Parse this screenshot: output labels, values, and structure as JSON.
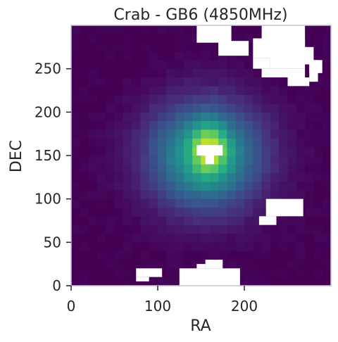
{
  "chart_data": {
    "type": "heatmap",
    "title": "Crab - GB6 (4850MHz)",
    "xlabel": "RA",
    "ylabel": "DEC",
    "xlim": [
      0,
      300
    ],
    "ylim": [
      0,
      300
    ],
    "xticks": [
      0,
      100,
      200
    ],
    "yticks": [
      0,
      50,
      100,
      150,
      200,
      250
    ],
    "grid": false,
    "colormap": "viridis",
    "grid_size": [
      30,
      30
    ],
    "cell_size": 10,
    "source": {
      "center": [
        155,
        150
      ],
      "sigma": [
        45,
        42
      ],
      "peak_center": [
        160,
        158
      ],
      "peak_sigma": [
        14,
        20
      ]
    },
    "masked_regions": [
      [
        210,
        270,
        262,
        285
      ],
      [
        230,
        270,
        250,
        265
      ],
      [
        210,
        230,
        250,
        262
      ],
      [
        145,
        185,
        280,
        300
      ],
      [
        170,
        205,
        265,
        282
      ],
      [
        220,
        270,
        240,
        250
      ],
      [
        250,
        275,
        230,
        240
      ],
      [
        240,
        270,
        270,
        300
      ],
      [
        220,
        250,
        285,
        300
      ],
      [
        230,
        270,
        260,
        275
      ],
      [
        275,
        285,
        235,
        260
      ],
      [
        265,
        280,
        255,
        275
      ],
      [
        275,
        290,
        245,
        260
      ],
      [
        145,
        175,
        150,
        162
      ],
      [
        155,
        165,
        140,
        150
      ],
      [
        225,
        268,
        80,
        100
      ],
      [
        217,
        237,
        70,
        80
      ],
      [
        75,
        105,
        10,
        20
      ],
      [
        75,
        90,
        5,
        10
      ],
      [
        125,
        195,
        0,
        20
      ],
      [
        155,
        175,
        20,
        30
      ],
      [
        145,
        155,
        20,
        25
      ]
    ],
    "colors": {
      "frame": "#c8c2d8",
      "mask": "#ffffff",
      "text": "#262626"
    }
  }
}
